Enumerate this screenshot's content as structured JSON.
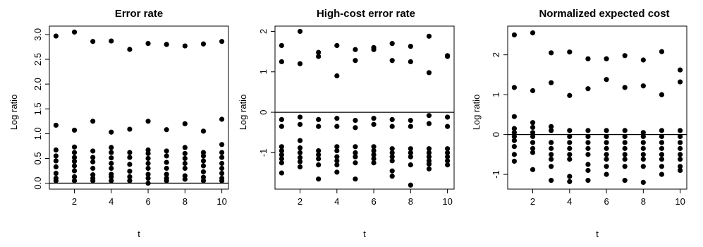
{
  "colors": {
    "points": "#000000",
    "reference_line": "#000000",
    "frame": "#000000",
    "background": "#ffffff"
  },
  "chart_data": [
    {
      "type": "scatter",
      "title": "Error rate",
      "xlabel": "t",
      "ylabel": "Log ratio",
      "xlim": [
        0.64,
        10.36
      ],
      "ylim": [
        -0.12,
        3.17
      ],
      "xticks": [
        2,
        4,
        6,
        8,
        10
      ],
      "xtick_labels": [
        "2",
        "4",
        "6",
        "8",
        "10"
      ],
      "yticks": [
        0.0,
        0.5,
        1.0,
        1.5,
        2.0,
        2.5,
        3.0
      ],
      "ytick_labels": [
        "0.0",
        "0.5",
        "1.0",
        "1.5",
        "2.0",
        "2.5",
        "3.0"
      ],
      "reference_line_y": 0,
      "grid": false,
      "x": [
        1,
        1,
        1,
        1,
        1,
        1,
        1,
        1,
        1,
        2,
        2,
        2,
        2,
        2,
        2,
        2,
        2,
        2,
        2,
        3,
        3,
        3,
        3,
        3,
        3,
        3,
        3,
        3,
        4,
        4,
        4,
        4,
        4,
        4,
        4,
        4,
        4,
        4,
        5,
        5,
        5,
        5,
        5,
        5,
        5,
        5,
        6,
        6,
        6,
        6,
        6,
        6,
        6,
        6,
        6,
        6,
        7,
        7,
        7,
        7,
        7,
        7,
        7,
        7,
        7,
        8,
        8,
        8,
        8,
        8,
        8,
        8,
        8,
        8,
        9,
        9,
        9,
        9,
        9,
        9,
        9,
        9,
        9,
        10,
        10,
        10,
        10,
        10,
        10,
        10,
        10,
        10,
        10
      ],
      "y": [
        2.97,
        1.17,
        0.67,
        0.55,
        0.45,
        0.33,
        0.2,
        0.1,
        0.05,
        3.05,
        1.07,
        0.73,
        0.62,
        0.52,
        0.44,
        0.35,
        0.25,
        0.13,
        0.05,
        2.86,
        1.25,
        0.65,
        0.52,
        0.43,
        0.3,
        0.17,
        0.1,
        0.05,
        2.87,
        1.03,
        0.72,
        0.62,
        0.51,
        0.4,
        0.3,
        0.18,
        0.13,
        0.05,
        2.7,
        1.09,
        0.62,
        0.52,
        0.38,
        0.24,
        0.13,
        0.05,
        2.82,
        1.25,
        0.67,
        0.6,
        0.5,
        0.4,
        0.3,
        0.18,
        0.1,
        0.0,
        2.8,
        1.08,
        0.65,
        0.55,
        0.42,
        0.3,
        0.18,
        0.1,
        0.05,
        2.77,
        1.2,
        0.72,
        0.6,
        0.5,
        0.4,
        0.3,
        0.15,
        0.08,
        2.81,
        1.05,
        0.62,
        0.55,
        0.45,
        0.35,
        0.23,
        0.12,
        0.05,
        2.86,
        1.29,
        0.78,
        0.62,
        0.52,
        0.4,
        0.3,
        0.2,
        0.1,
        0.05
      ]
    },
    {
      "type": "scatter",
      "title": "High-cost error rate",
      "xlabel": "t",
      "ylabel": "Log ratio",
      "xlim": [
        0.64,
        10.36
      ],
      "ylim": [
        -1.9,
        2.13
      ],
      "xticks": [
        2,
        4,
        6,
        8,
        10
      ],
      "xtick_labels": [
        "2",
        "4",
        "6",
        "8",
        "10"
      ],
      "yticks": [
        -1,
        0,
        1,
        2
      ],
      "ytick_labels": [
        "-1",
        "0",
        "1",
        "2"
      ],
      "reference_line_y": 0,
      "grid": false,
      "x": [
        1,
        1,
        1,
        1,
        1,
        1,
        1,
        1,
        1,
        1,
        2,
        2,
        2,
        2,
        2,
        2,
        2,
        2,
        2,
        2,
        3,
        3,
        3,
        3,
        3,
        3,
        3,
        3,
        3,
        4,
        4,
        4,
        4,
        4,
        4,
        4,
        4,
        4,
        4,
        5,
        5,
        5,
        5,
        5,
        5,
        5,
        5,
        5,
        6,
        6,
        6,
        6,
        6,
        6,
        6,
        6,
        6,
        7,
        7,
        7,
        7,
        7,
        7,
        7,
        7,
        7,
        7,
        8,
        8,
        8,
        8,
        8,
        8,
        8,
        8,
        8,
        9,
        9,
        9,
        9,
        9,
        9,
        9,
        9,
        9,
        9,
        10,
        10,
        10,
        10,
        10,
        10,
        10,
        10,
        10
      ],
      "y": [
        1.65,
        1.25,
        -0.18,
        -0.35,
        -0.85,
        -0.95,
        -1.05,
        -1.15,
        -1.25,
        -1.5,
        2.0,
        1.2,
        -0.12,
        -0.3,
        -0.7,
        -0.88,
        -1.0,
        -1.12,
        -1.22,
        -1.35,
        1.48,
        1.38,
        -0.18,
        -0.35,
        -0.95,
        -1.05,
        -1.15,
        -1.3,
        -1.65,
        1.65,
        0.9,
        -0.15,
        -0.35,
        -0.85,
        -0.95,
        -1.1,
        -1.2,
        -1.3,
        -1.48,
        1.55,
        1.28,
        -0.2,
        -0.38,
        -0.85,
        -1.0,
        -1.1,
        -1.25,
        -1.65,
        1.6,
        1.55,
        -0.15,
        -0.3,
        -0.85,
        -0.95,
        -1.05,
        -1.15,
        -1.25,
        1.7,
        1.28,
        -0.18,
        -0.35,
        -0.9,
        -1.0,
        -1.1,
        -1.2,
        -1.45,
        -1.58,
        1.63,
        1.25,
        -0.2,
        -0.35,
        -0.9,
        -1.0,
        -1.1,
        -1.3,
        -1.8,
        1.88,
        0.98,
        -0.08,
        -0.28,
        -0.9,
        -1.0,
        -1.1,
        -1.2,
        -1.28,
        -1.4,
        1.4,
        1.38,
        -0.12,
        -0.35,
        -0.9,
        -1.0,
        -1.1,
        -1.2,
        -1.3
      ]
    },
    {
      "type": "scatter",
      "title": "Normalized expected cost",
      "xlabel": "t",
      "ylabel": "Log ratio",
      "xlim": [
        0.64,
        10.36
      ],
      "ylim": [
        -1.37,
        2.72
      ],
      "xticks": [
        2,
        4,
        6,
        8,
        10
      ],
      "xtick_labels": [
        "2",
        "4",
        "6",
        "8",
        "10"
      ],
      "yticks": [
        -1,
        0,
        1,
        2
      ],
      "ytick_labels": [
        "-1",
        "0",
        "1",
        "2"
      ],
      "reference_line_y": 0,
      "grid": false,
      "x": [
        1,
        1,
        1,
        1,
        1,
        1,
        1,
        1,
        1,
        1,
        2,
        2,
        2,
        2,
        2,
        2,
        2,
        2,
        2,
        2,
        3,
        3,
        3,
        3,
        3,
        3,
        3,
        3,
        3,
        3,
        4,
        4,
        4,
        4,
        4,
        4,
        4,
        4,
        4,
        4,
        5,
        5,
        5,
        5,
        5,
        5,
        5,
        5,
        5,
        5,
        6,
        6,
        6,
        6,
        6,
        6,
        6,
        6,
        6,
        6,
        7,
        7,
        7,
        7,
        7,
        7,
        7,
        7,
        7,
        7,
        8,
        8,
        8,
        8,
        8,
        8,
        8,
        8,
        8,
        8,
        9,
        9,
        9,
        9,
        9,
        9,
        9,
        9,
        9,
        9,
        10,
        10,
        10,
        10,
        10,
        10,
        10,
        10,
        10,
        10
      ],
      "y": [
        2.5,
        1.18,
        0.45,
        0.15,
        0.05,
        -0.05,
        -0.15,
        -0.3,
        -0.5,
        -0.67,
        2.55,
        1.1,
        0.3,
        0.18,
        0.05,
        -0.05,
        -0.2,
        -0.35,
        -0.45,
        -0.88,
        2.05,
        1.3,
        0.2,
        0.1,
        -0.2,
        -0.35,
        -0.5,
        -0.62,
        -0.8,
        -1.15,
        2.07,
        0.98,
        0.1,
        -0.05,
        -0.2,
        -0.35,
        -0.5,
        -0.62,
        -1.05,
        -1.18,
        1.9,
        1.15,
        0.1,
        -0.05,
        -0.2,
        -0.35,
        -0.5,
        -0.75,
        -0.9,
        -1.15,
        1.9,
        1.38,
        0.1,
        -0.05,
        -0.2,
        -0.35,
        -0.5,
        -0.62,
        -0.8,
        -1.0,
        1.98,
        1.18,
        0.1,
        -0.05,
        -0.2,
        -0.35,
        -0.5,
        -0.62,
        -0.8,
        -1.15,
        1.87,
        1.22,
        0.05,
        -0.05,
        -0.2,
        -0.35,
        -0.5,
        -0.62,
        -0.8,
        -1.2,
        2.08,
        1.0,
        0.1,
        -0.05,
        -0.2,
        -0.35,
        -0.5,
        -0.62,
        -0.8,
        -1.0,
        1.62,
        1.32,
        0.1,
        -0.05,
        -0.2,
        -0.35,
        -0.5,
        -0.62,
        -0.8,
        -0.9
      ]
    }
  ]
}
